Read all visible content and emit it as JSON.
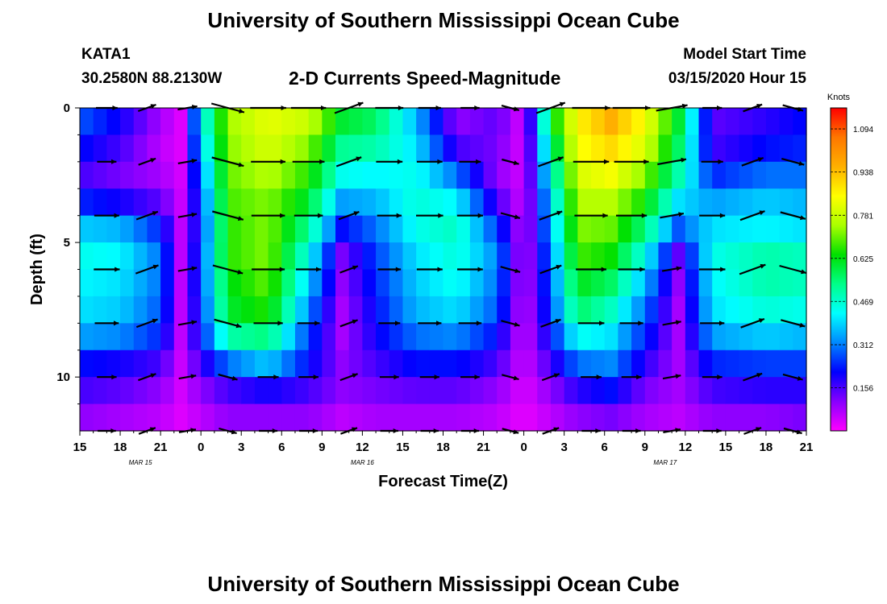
{
  "header": {
    "title": "University of Southern Mississippi Ocean Cube",
    "station": "KATA1",
    "coords": "30.2580N 88.2130W",
    "subtitle": "2-D Currents Speed-Magnitude",
    "model_start_label": "Model Start Time",
    "model_start_value": "03/15/2020 Hour 15"
  },
  "footer": {
    "title": "University of Southern Mississippi Ocean Cube"
  },
  "chart_data": {
    "type": "heatmap",
    "title": "2-D Currents Speed-Magnitude",
    "xlabel": "Forecast Time(Z)",
    "ylabel": "Depth (ft)",
    "x_tick_labels": [
      "15",
      "18",
      "21",
      "0",
      "3",
      "6",
      "9",
      "12",
      "15",
      "18",
      "21",
      "0",
      "3",
      "6",
      "9",
      "12",
      "15",
      "18",
      "21"
    ],
    "x_hours": [
      0,
      3,
      6,
      9,
      12,
      15,
      18,
      21,
      24,
      27,
      30,
      33,
      36,
      39,
      42,
      45,
      48,
      51,
      54
    ],
    "xlim_hours": [
      0,
      54
    ],
    "date_labels": [
      {
        "text": "MAR 15",
        "hour": 4.5
      },
      {
        "text": "MAR 16",
        "hour": 21
      },
      {
        "text": "MAR 17",
        "hour": 43.5
      }
    ],
    "y_tick_labels": [
      "0",
      "5",
      "10"
    ],
    "y_ticks": [
      0,
      5,
      10
    ],
    "ylim": [
      0,
      12
    ],
    "colorbar": {
      "label": "Knots",
      "range": [
        0,
        1.17
      ],
      "tick_labels": [
        "1.094",
        "0.938",
        "0.781",
        "0.625",
        "0.469",
        "0.312",
        "0.156"
      ],
      "ticks": [
        1.094,
        0.938,
        0.781,
        0.625,
        0.469,
        0.312,
        0.156
      ],
      "stops": [
        "#ff00ff",
        "#8800ff",
        "#0000ff",
        "#0088ff",
        "#00ffff",
        "#00ff88",
        "#00e000",
        "#aaff00",
        "#ffff00",
        "#ffb000",
        "#ff7700",
        "#ff0000"
      ]
    },
    "depth_rows": [
      0.5,
      1.5,
      2.5,
      3.5,
      4.5,
      5.5,
      6.5,
      7.5,
      8.5,
      9.5,
      10.5,
      11.5
    ],
    "speed_profile": [
      {
        "hour": 0,
        "s": [
          0.28,
          0.22,
          0.16,
          0.24,
          0.38,
          0.44,
          0.42,
          0.4,
          0.34,
          0.22,
          0.16,
          0.1
        ]
      },
      {
        "hour": 3,
        "s": [
          0.2,
          0.16,
          0.12,
          0.2,
          0.36,
          0.42,
          0.4,
          0.38,
          0.32,
          0.2,
          0.14,
          0.08
        ]
      },
      {
        "hour": 6,
        "s": [
          0.08,
          0.06,
          0.08,
          0.14,
          0.24,
          0.3,
          0.3,
          0.28,
          0.24,
          0.16,
          0.1,
          0.06
        ]
      },
      {
        "hour": 7.5,
        "s": [
          0.03,
          0.03,
          0.04,
          0.05,
          0.06,
          0.06,
          0.06,
          0.06,
          0.06,
          0.05,
          0.04,
          0.03
        ]
      },
      {
        "hour": 9,
        "s": [
          0.4,
          0.36,
          0.3,
          0.26,
          0.24,
          0.26,
          0.26,
          0.24,
          0.22,
          0.16,
          0.1,
          0.06
        ]
      },
      {
        "hour": 11,
        "s": [
          0.74,
          0.72,
          0.7,
          0.68,
          0.66,
          0.66,
          0.62,
          0.6,
          0.5,
          0.3,
          0.16,
          0.1
        ]
      },
      {
        "hour": 14,
        "s": [
          0.82,
          0.8,
          0.76,
          0.72,
          0.72,
          0.72,
          0.7,
          0.66,
          0.54,
          0.38,
          0.2,
          0.1
        ]
      },
      {
        "hour": 17,
        "s": [
          0.78,
          0.72,
          0.66,
          0.6,
          0.52,
          0.44,
          0.38,
          0.32,
          0.26,
          0.22,
          0.16,
          0.1
        ]
      },
      {
        "hour": 19.5,
        "s": [
          0.6,
          0.52,
          0.44,
          0.34,
          0.22,
          0.12,
          0.1,
          0.08,
          0.08,
          0.1,
          0.1,
          0.06
        ]
      },
      {
        "hour": 22,
        "s": [
          0.56,
          0.5,
          0.42,
          0.36,
          0.3,
          0.26,
          0.24,
          0.22,
          0.2,
          0.16,
          0.12,
          0.08
        ]
      },
      {
        "hour": 25,
        "s": [
          0.36,
          0.4,
          0.44,
          0.46,
          0.44,
          0.4,
          0.38,
          0.36,
          0.3,
          0.22,
          0.14,
          0.08
        ]
      },
      {
        "hour": 28,
        "s": [
          0.1,
          0.16,
          0.3,
          0.42,
          0.48,
          0.46,
          0.44,
          0.4,
          0.32,
          0.22,
          0.14,
          0.08
        ]
      },
      {
        "hour": 31,
        "s": [
          0.14,
          0.12,
          0.1,
          0.16,
          0.26,
          0.32,
          0.3,
          0.28,
          0.22,
          0.16,
          0.1,
          0.06
        ]
      },
      {
        "hour": 33,
        "s": [
          0.03,
          0.03,
          0.04,
          0.04,
          0.05,
          0.05,
          0.05,
          0.04,
          0.04,
          0.04,
          0.03,
          0.02
        ]
      },
      {
        "hour": 35,
        "s": [
          0.6,
          0.52,
          0.44,
          0.38,
          0.34,
          0.3,
          0.28,
          0.26,
          0.22,
          0.16,
          0.1,
          0.06
        ]
      },
      {
        "hour": 37,
        "s": [
          0.86,
          0.84,
          0.8,
          0.76,
          0.72,
          0.68,
          0.62,
          0.56,
          0.44,
          0.3,
          0.18,
          0.1
        ]
      },
      {
        "hour": 39.5,
        "s": [
          0.96,
          0.9,
          0.84,
          0.76,
          0.7,
          0.64,
          0.56,
          0.48,
          0.4,
          0.32,
          0.22,
          0.12
        ]
      },
      {
        "hour": 42,
        "s": [
          0.84,
          0.8,
          0.72,
          0.64,
          0.54,
          0.44,
          0.36,
          0.3,
          0.24,
          0.18,
          0.12,
          0.08
        ]
      },
      {
        "hour": 44.5,
        "s": [
          0.6,
          0.56,
          0.5,
          0.4,
          0.28,
          0.14,
          0.1,
          0.08,
          0.08,
          0.08,
          0.08,
          0.06
        ]
      },
      {
        "hour": 47,
        "s": [
          0.14,
          0.16,
          0.24,
          0.34,
          0.4,
          0.44,
          0.42,
          0.4,
          0.34,
          0.24,
          0.16,
          0.1
        ]
      },
      {
        "hour": 51,
        "s": [
          0.18,
          0.22,
          0.3,
          0.38,
          0.42,
          0.5,
          0.5,
          0.46,
          0.38,
          0.26,
          0.18,
          0.1
        ]
      },
      {
        "hour": 54,
        "s": [
          0.22,
          0.24,
          0.3,
          0.36,
          0.4,
          0.48,
          0.48,
          0.44,
          0.36,
          0.26,
          0.18,
          0.12
        ]
      }
    ],
    "arrow_hours": [
      2,
      5,
      8,
      11,
      14,
      17,
      20,
      23,
      26,
      29,
      32,
      35,
      38,
      41,
      44,
      47,
      50,
      53
    ],
    "arrow_depths": [
      0,
      2,
      4,
      6,
      8,
      10,
      12
    ],
    "arrow_speed_scale": 30
  }
}
